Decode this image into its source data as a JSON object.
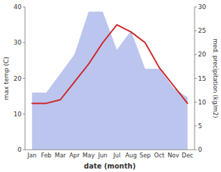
{
  "chart_data": {
    "type": "line",
    "categories": [
      "Jan",
      "Feb",
      "Mar",
      "Apr",
      "May",
      "Jun",
      "Jul",
      "Aug",
      "Sep",
      "Oct",
      "Nov",
      "Dec"
    ],
    "series": [
      {
        "type": "area",
        "axis": "y2",
        "color": "#bcc5ee",
        "values": [
          12,
          12,
          16,
          20,
          29,
          29,
          21,
          25,
          17,
          17,
          13,
          11
        ]
      },
      {
        "type": "line",
        "color": "#cc2222",
        "values": [
          13,
          13,
          14,
          19,
          24,
          30,
          35,
          33,
          30,
          23,
          18,
          13
        ]
      }
    ],
    "x_label": "date (month)",
    "y_label": "max temp (C)",
    "y2_label": "med. precipitation (kg/m2)",
    "ylim": [
      0,
      40
    ],
    "yticks": [
      0,
      10,
      20,
      30,
      40
    ],
    "y2lim": [
      0,
      30
    ],
    "y2ticks": [
      0,
      5,
      10,
      15,
      20,
      25,
      30
    ],
    "grid": false
  }
}
